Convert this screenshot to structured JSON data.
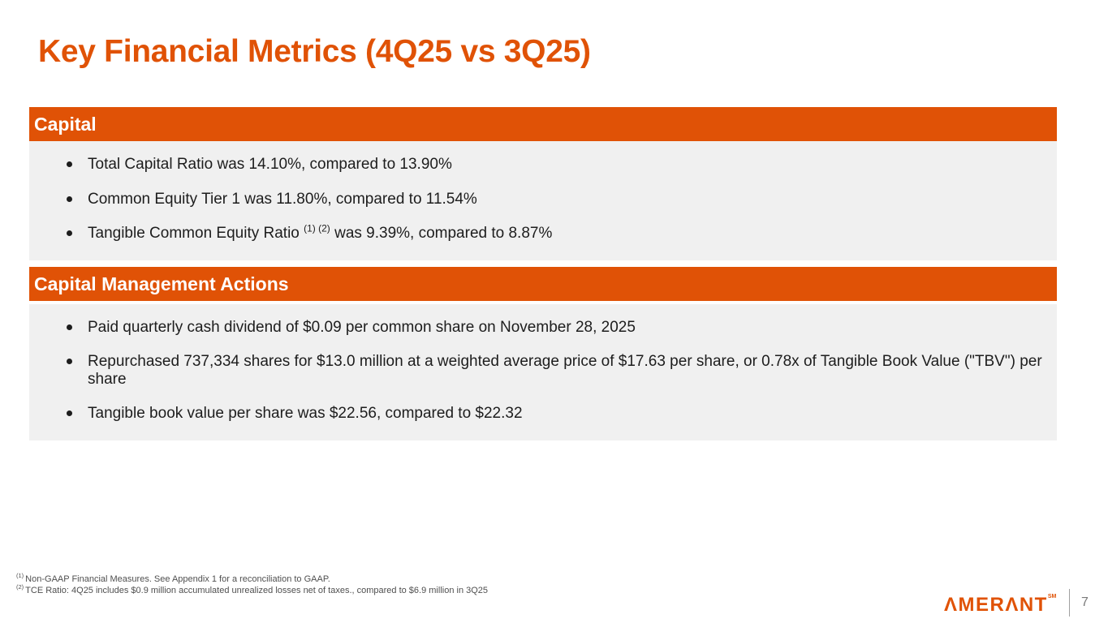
{
  "slide": {
    "title": "Key Financial Metrics (4Q25 vs 3Q25)"
  },
  "colors": {
    "accent_orange": "#E05206",
    "section_body_bg": "#F0F0F0",
    "body_text": "#1d1d1d",
    "footnote_text": "#4f4f4f",
    "page_number_gray": "#7a7a7a"
  },
  "sections": [
    {
      "header": "Capital",
      "bullets": [
        {
          "before": "Total Capital Ratio was 14.10%, compared to 13.90%"
        },
        {
          "before": "Common Equity Tier 1 was 11.80%, compared to 11.54%"
        },
        {
          "before": "Tangible Common Equity Ratio ",
          "sup": "(1) (2)",
          "after": " was 9.39%, compared to 8.87%"
        }
      ]
    },
    {
      "header": "Capital Management Actions",
      "bullets": [
        {
          "before": "Paid quarterly cash dividend of $0.09 per common share on November 28, 2025"
        },
        {
          "before": "Repurchased 737,334 shares for $13.0 million at a weighted average price of $17.63 per share, or 0.78x of Tangible Book Value (\"TBV\") per share"
        },
        {
          "before": "Tangible book value per share was $22.56, compared to $22.32"
        }
      ]
    }
  ],
  "footnotes": [
    {
      "marker": "(1)",
      "text": "Non-GAAP Financial Measures. See Appendix 1 for a reconciliation to GAAP."
    },
    {
      "marker": "(2)",
      "text": "TCE Ratio: 4Q25 includes $0.9 million accumulated unrealized losses net of taxes., compared to $6.9 million in 3Q25"
    }
  ],
  "footer": {
    "logo_text": "AMERANT",
    "logo_display": "ΛMERΛNT",
    "logo_trademark": "SM",
    "page_number": "7"
  }
}
